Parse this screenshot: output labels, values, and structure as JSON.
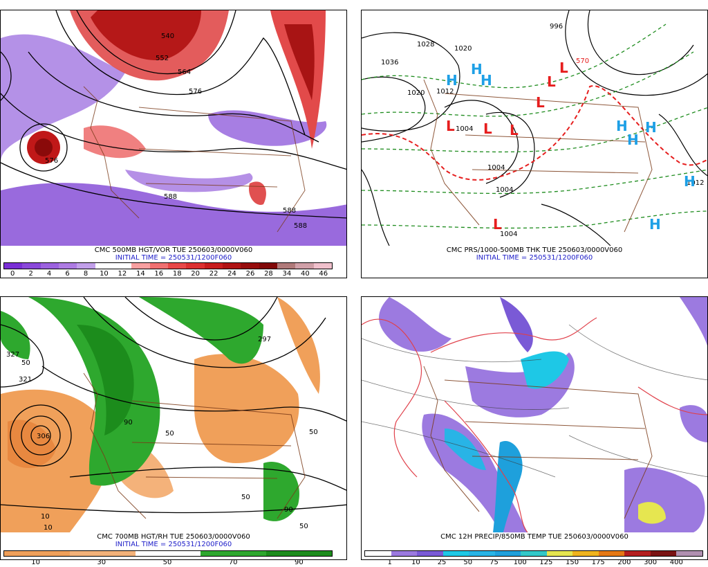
{
  "panels": [
    {
      "id": "hgt_vor",
      "title": "CMC 500MB HGT/VOR TUE 250603/0000V060",
      "initial_time": "INITIAL TIME = 250531/1200F060",
      "contour_labels": [
        "540",
        "552",
        "564",
        "576",
        "588",
        "588",
        "588",
        "576"
      ],
      "colorbar": {
        "labels": [
          "0",
          "2",
          "4",
          "6",
          "8",
          "10",
          "12",
          "14",
          "16",
          "18",
          "20",
          "22",
          "24",
          "26",
          "28",
          "34",
          "40",
          "46"
        ],
        "colors": [
          "#7a2fd6",
          "#8a48da",
          "#9c62df",
          "#ae7be3",
          "#c2a0ea",
          "#ffffff",
          "#ffffff",
          "#f8a0a0",
          "#f07070",
          "#e84848",
          "#dc3030",
          "#c81e1e",
          "#b01414",
          "#960c0c",
          "#800808",
          "#b07a7a",
          "#d0a0a8",
          "#f0c0cc"
        ]
      }
    },
    {
      "id": "prs_thk",
      "title": "CMC PRS/1000-500MB THK TUE 250603/0000V060",
      "initial_time": "INITIAL TIME = 250531/1200F060",
      "pressure_labels": [
        "1036",
        "1028",
        "1020",
        "1012",
        "1020",
        "996",
        "1004",
        "1004",
        "1004",
        "1004",
        "1012"
      ],
      "thickness_label": "570",
      "highs": [
        "H",
        "H",
        "H",
        "H",
        "H",
        "H",
        "H",
        "H"
      ],
      "lows": [
        "L",
        "L",
        "L",
        "L",
        "L",
        "L",
        "L"
      ],
      "colors": {
        "high": "#1ea0e6",
        "low": "#e61e1e",
        "thickness_dashed": "#1e8c1e",
        "thickness_540": "#e61e1e",
        "isobar": "#000000"
      }
    },
    {
      "id": "hgt_rh",
      "title": "CMC 700MB HGT/RH TUE 250603/0000V060",
      "initial_time": "INITIAL TIME = 250531/1200F060",
      "contour_labels": [
        "327",
        "321",
        "306",
        "297",
        "50",
        "50",
        "50",
        "50",
        "10",
        "10",
        "50",
        "90",
        "90"
      ],
      "colorbar": {
        "labels": [
          "10",
          "30",
          "50",
          "70",
          "90"
        ],
        "colors": [
          "#f0a05a",
          "#f0a05a",
          "#f4b27a",
          "#f4b27a",
          "#ffffff",
          "#ffffff",
          "#2ea82e",
          "#2ea82e",
          "#1c8c1c",
          "#1c8c1c"
        ]
      }
    },
    {
      "id": "precip_temp",
      "title": "CMC 12H PRECIP/850MB TEMP TUE 250603/0000V060",
      "colorbar": {
        "labels": [
          "1",
          "10",
          "25",
          "50",
          "75",
          "100",
          "125",
          "150",
          "175",
          "200",
          "300",
          "400"
        ],
        "colors": [
          "#ffffff",
          "#9c7ae0",
          "#7a5ad6",
          "#1ec8e6",
          "#28b4e6",
          "#1ea0dc",
          "#32c8c8",
          "#e6e650",
          "#f0b41e",
          "#e67814",
          "#b41e1e",
          "#7a1414",
          "#b090b0"
        ]
      }
    }
  ]
}
